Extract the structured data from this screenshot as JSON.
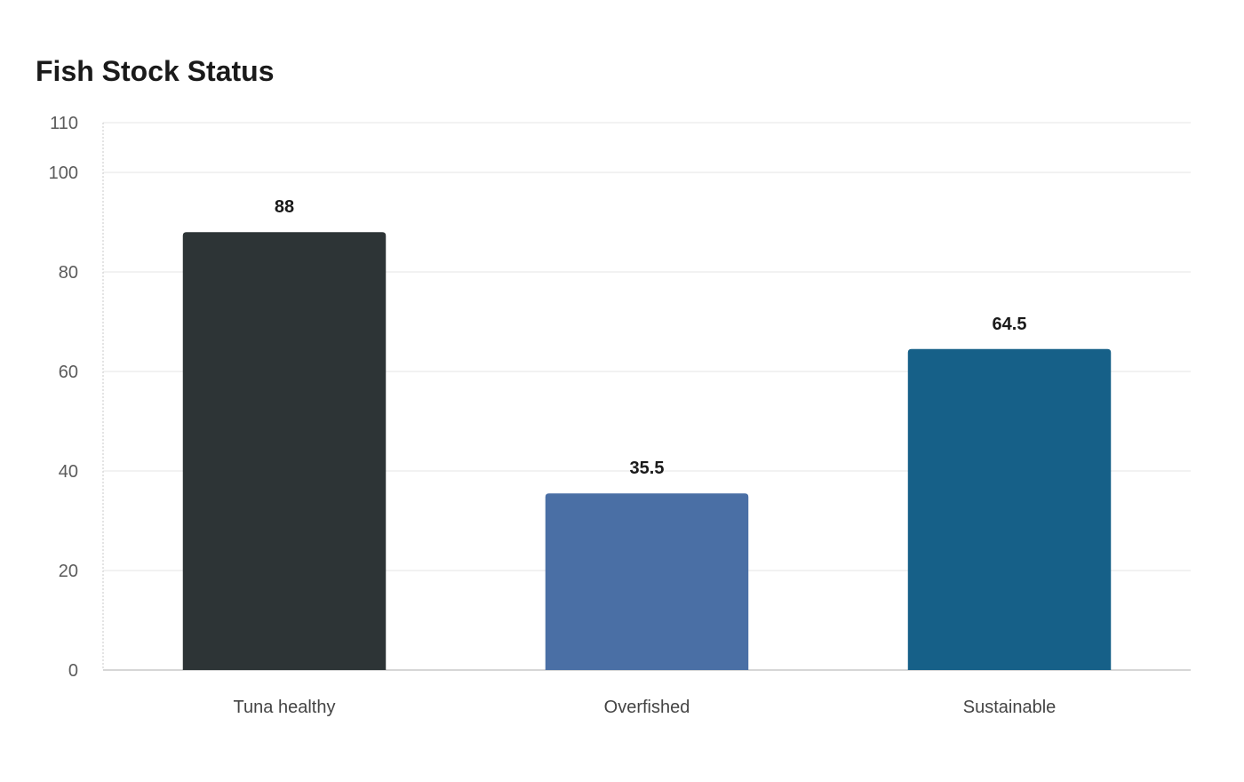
{
  "chart_data": {
    "type": "bar",
    "title": "Fish Stock Status",
    "xlabel": "",
    "ylabel": "",
    "categories": [
      "Tuna healthy",
      "Overfished",
      "Sustainable"
    ],
    "values": [
      88,
      35.5,
      64.5
    ],
    "data_labels": [
      "88",
      "35.5",
      "64.5"
    ],
    "bar_colors": [
      "#2d3436",
      "#4a6fa5",
      "#166088"
    ],
    "ylim": [
      0,
      110
    ],
    "yticks": [
      0,
      20,
      40,
      60,
      80,
      100,
      110
    ],
    "grid": true,
    "legend": "none"
  }
}
